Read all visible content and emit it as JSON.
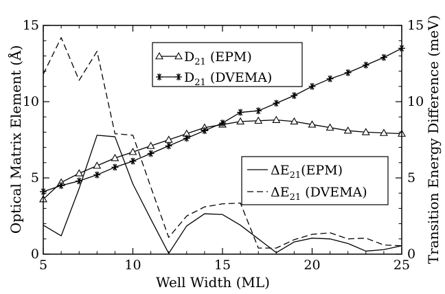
{
  "chart_data": {
    "type": "line",
    "xlabel": "Well Width (ML)",
    "ylabel_left": "Optical Matrix Element (Å)",
    "ylabel_right": "Transition Energy Difference (meV)",
    "xlim": [
      5,
      25
    ],
    "ylim_left": [
      0,
      15
    ],
    "ylim_right": [
      0,
      15
    ],
    "x_ticks": [
      "5",
      "10",
      "15",
      "20",
      "25"
    ],
    "y_ticks_left": [
      "0",
      "5",
      "10",
      "15"
    ],
    "y_ticks_right": [
      "0",
      "5",
      "10",
      "15"
    ],
    "grid": false,
    "x": [
      5,
      6,
      7,
      8,
      9,
      10,
      11,
      12,
      13,
      14,
      15,
      16,
      17,
      18,
      19,
      20,
      21,
      22,
      23,
      24,
      25
    ],
    "series": [
      {
        "name": "D21 (EPM)",
        "legend_main": "D",
        "legend_sub": "21",
        "legend_rest": " (EPM)",
        "axis": "left",
        "marker": "triangle",
        "dash": "solid",
        "values": [
          3.6,
          4.7,
          5.3,
          5.8,
          6.3,
          6.7,
          7.1,
          7.5,
          7.9,
          8.3,
          8.5,
          8.7,
          8.75,
          8.8,
          8.7,
          8.5,
          8.3,
          8.1,
          8.0,
          7.95,
          7.9
        ]
      },
      {
        "name": "D21 (DVEMA)",
        "legend_main": "D",
        "legend_sub": "21",
        "legend_rest": " (DVEMA)",
        "axis": "left",
        "marker": "asterisk",
        "dash": "solid",
        "values": [
          4.1,
          4.5,
          4.8,
          5.2,
          5.7,
          6.1,
          6.6,
          7.1,
          7.6,
          8.1,
          8.6,
          9.3,
          9.4,
          9.9,
          10.4,
          11.0,
          11.5,
          11.9,
          12.4,
          12.9,
          13.5
        ]
      },
      {
        "name": "ΔE21(EPM)",
        "legend_main": "ΔE",
        "legend_sub": "21",
        "legend_rest": "(EPM)",
        "axis": "right",
        "marker": "none",
        "dash": "solid",
        "values": [
          1.9,
          1.2,
          4.3,
          7.8,
          7.7,
          4.6,
          2.3,
          0.05,
          1.85,
          2.65,
          2.6,
          1.9,
          1.0,
          0.1,
          0.8,
          1.05,
          1.0,
          0.7,
          0.2,
          0.3,
          0.55
        ]
      },
      {
        "name": "ΔE21 (DVEMA)",
        "legend_main": "ΔE",
        "legend_sub": "21",
        "legend_rest": " (DVEMA)",
        "axis": "right",
        "marker": "none",
        "dash": "dashed",
        "values": [
          11.8,
          14.2,
          11.4,
          13.3,
          7.9,
          7.8,
          4.4,
          1.1,
          2.5,
          3.1,
          3.3,
          3.35,
          0.4,
          0.4,
          0.95,
          1.3,
          1.4,
          1.0,
          1.05,
          0.6,
          0.55
        ]
      }
    ],
    "legends": [
      {
        "placement": "top-center",
        "series": [
          0,
          1
        ]
      },
      {
        "placement": "middle-right",
        "series": [
          2,
          3
        ]
      }
    ]
  }
}
